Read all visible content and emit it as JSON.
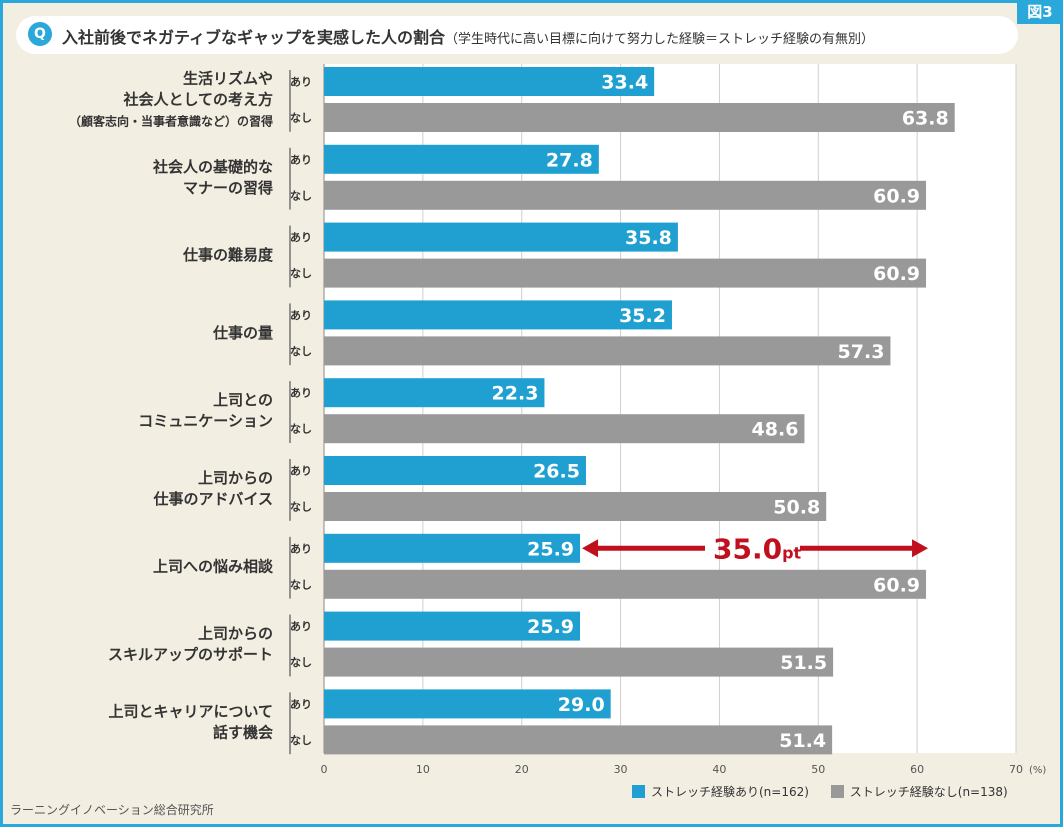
{
  "figure_tag": "図3",
  "question_badge": "Q",
  "title": "入社前後でネガティブなギャップを実感した人の割合",
  "subtitle": "（学生時代に高い目標に向けて努力した経験＝ストレッチ経験の有無別）",
  "source": "ラーニングイノベーション総合研究所",
  "colors": {
    "frame": "#29a8d9",
    "background": "#f3eee2",
    "series_ari": "#1fa0d1",
    "series_nashi": "#999999",
    "highlight": "#c0101e"
  },
  "chart_data": {
    "type": "bar",
    "orientation": "horizontal",
    "categories": [
      [
        "生活リズムや",
        "社会人としての考え方",
        "（顧客志向・当事者意識など）の習得"
      ],
      [
        "社会人の基礎的な",
        "マナーの習得"
      ],
      [
        "仕事の難易度"
      ],
      [
        "仕事の量"
      ],
      [
        "上司との",
        "コミュニケーション"
      ],
      [
        "上司からの",
        "仕事のアドバイス"
      ],
      [
        "上司への悩み相談"
      ],
      [
        "上司からの",
        "スキルアップのサポート"
      ],
      [
        "上司とキャリアについて",
        "話す機会"
      ]
    ],
    "sub_labels": [
      "あり",
      "なし"
    ],
    "series": [
      {
        "name": "ストレッチ経験あり(n=162)",
        "values": [
          33.4,
          27.8,
          35.8,
          35.2,
          22.3,
          26.5,
          25.9,
          25.9,
          29.0
        ]
      },
      {
        "name": "ストレッチ経験なし(n=138)",
        "values": [
          63.8,
          60.9,
          60.9,
          57.3,
          48.6,
          50.8,
          60.9,
          51.5,
          51.4
        ]
      }
    ],
    "x_ticks": [
      "0",
      "10",
      "20",
      "30",
      "40",
      "50",
      "60",
      "70"
    ],
    "x_unit": "(%)",
    "xlim": [
      0,
      70
    ],
    "grid": true,
    "legend_position": "bottom-right",
    "annotation": {
      "category_index": 6,
      "text_big": "35.0",
      "text_small": "pt"
    }
  }
}
